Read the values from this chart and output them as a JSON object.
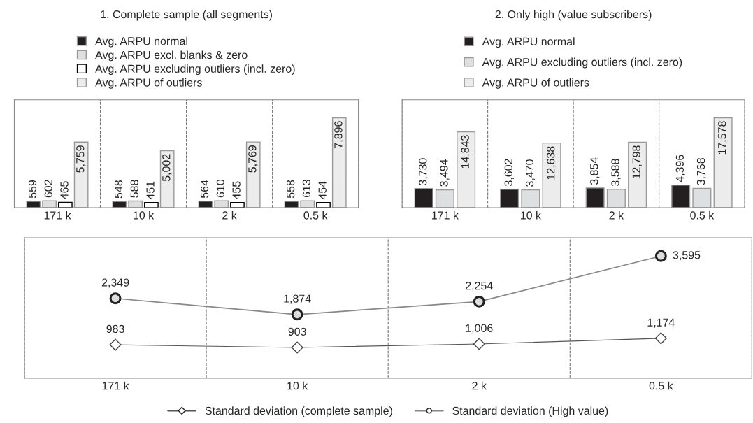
{
  "chart_data": [
    {
      "type": "bar",
      "title": "1. Complete sample (all segments)",
      "categories": [
        "171 k",
        "10 k",
        "2 k",
        "0.5 k"
      ],
      "grid": "x",
      "legend": "top",
      "tick_labels": "x",
      "series": [
        {
          "name": "Avg. ARPU normal",
          "color": "#231f20",
          "values": [
            559,
            548,
            564,
            558
          ],
          "value_labels": [
            "559",
            "548",
            "564",
            "558"
          ]
        },
        {
          "name": "Avg. ARPU excl. blanks & zero",
          "color": "#dedfe0",
          "values": [
            602,
            588,
            610,
            613
          ],
          "value_labels": [
            "602",
            "588",
            "610",
            "613"
          ]
        },
        {
          "name": "Avg. ARPU excluding outliers (incl. zero)",
          "color": "#ffffff",
          "values": [
            465,
            451,
            455,
            454
          ],
          "value_labels": [
            "465",
            "451",
            "455",
            "454"
          ]
        },
        {
          "name": "Avg. ARPU of outliers",
          "color": "#ececec",
          "values": [
            5759,
            5002,
            5769,
            7896
          ],
          "value_labels": [
            "5,759",
            "5,002",
            "5,769",
            "7,896"
          ]
        }
      ]
    },
    {
      "type": "bar",
      "title": "2. Only high (value subscribers)",
      "categories": [
        "171 k",
        "10 k",
        "2 k",
        "0.5 k"
      ],
      "grid": "x",
      "legend": "top",
      "tick_labels": "x",
      "series": [
        {
          "name": "Avg. ARPU normal",
          "color": "#231f20",
          "values": [
            3730,
            3602,
            3854,
            4396
          ],
          "value_labels": [
            "3,730",
            "3,602",
            "3,854",
            "4,396"
          ]
        },
        {
          "name": "Avg. ARPU excluding outliers (incl. zero)",
          "color": "#dedfe0",
          "values": [
            3494,
            3470,
            3588,
            3768
          ],
          "value_labels": [
            "3,494",
            "3,470",
            "3,588",
            "3,768"
          ]
        },
        {
          "name": "Avg. ARPU of outliers",
          "color": "#ececec",
          "values": [
            14843,
            12638,
            12798,
            17578
          ],
          "value_labels": [
            "14,843",
            "12,638",
            "12,798",
            "17,578"
          ]
        }
      ]
    },
    {
      "type": "line",
      "categories": [
        "171 k",
        "10 k",
        "2 k",
        "0.5 k"
      ],
      "grid": "x",
      "legend": "bottom",
      "tick_labels": "x",
      "series": [
        {
          "name": "Standard deviation (complete sample)",
          "color": "#555555",
          "marker": "diamond",
          "values": [
            983,
            903,
            1006,
            1174
          ],
          "value_labels": [
            "983",
            "903",
            "1,006",
            "1,174"
          ]
        },
        {
          "name": "Standard deviation (High value)",
          "color": "#888888",
          "marker": "circle",
          "values": [
            2349,
            1874,
            2254,
            3595
          ],
          "value_labels": [
            "2,349",
            "1,874",
            "2,254",
            "3,595"
          ]
        }
      ]
    }
  ]
}
